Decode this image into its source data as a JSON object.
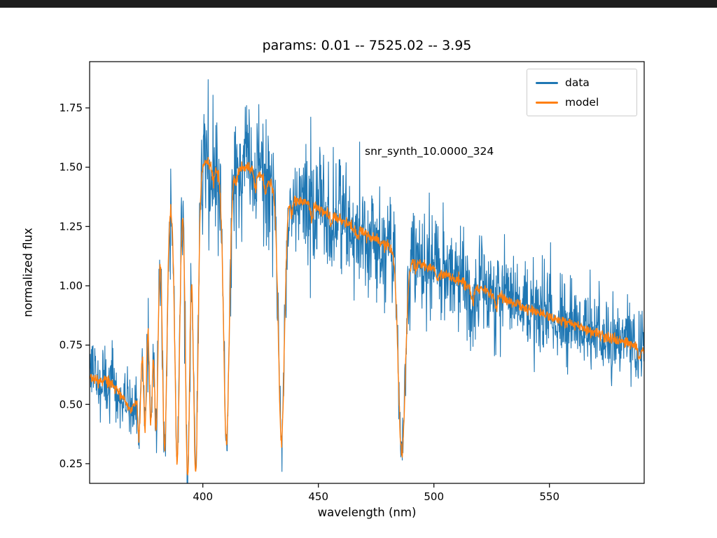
{
  "window": {
    "top_bar_color": "#1e1e1e"
  },
  "figure": {
    "title": "params: 0.01 -- 7525.02 -- 3.95",
    "xlabel": "wavelength (nm)",
    "ylabel": "normalized flux",
    "annotation": "snr_synth_10.0000_324",
    "background": "#ffffff"
  },
  "legend": {
    "entries": [
      {
        "label": "data",
        "color": "#1f77b4"
      },
      {
        "label": "model",
        "color": "#ff7f0e"
      }
    ]
  },
  "chart_data": {
    "type": "line",
    "title": "params: 0.01 -- 7525.02 -- 3.95",
    "xlabel": "wavelength (nm)",
    "ylabel": "normalized flux",
    "xlim": [
      351,
      591
    ],
    "ylim": [
      0.167,
      1.945
    ],
    "xticks": [
      400,
      450,
      500,
      550
    ],
    "yticks": [
      0.25,
      0.5,
      0.75,
      1.0,
      1.25,
      1.5,
      1.75
    ],
    "grid": false,
    "legend_position": "upper right",
    "annotation": {
      "text": "snr_synth_10.0000_324",
      "x": 470,
      "y": 1.57
    },
    "series": [
      {
        "name": "data",
        "color": "#1f77b4",
        "linewidth": 1.1
      },
      {
        "name": "model",
        "color": "#ff7f0e",
        "linewidth": 1.4
      }
    ],
    "model_continuum": {
      "x": [
        351,
        355,
        358,
        361,
        364,
        367,
        369,
        371,
        373,
        375,
        377,
        379,
        381,
        384,
        387,
        390,
        393,
        396,
        399,
        402,
        405,
        408,
        411,
        414,
        417,
        420,
        424,
        428,
        432,
        436,
        440,
        445,
        450,
        455,
        460,
        465,
        470,
        475,
        480,
        485,
        490,
        495,
        500,
        505,
        510,
        515,
        520,
        525,
        530,
        535,
        540,
        545,
        550,
        555,
        560,
        565,
        570,
        575,
        580,
        585,
        588,
        591
      ],
      "y": [
        0.615,
        0.6,
        0.6,
        0.585,
        0.55,
        0.5,
        0.47,
        0.52,
        0.72,
        0.9,
        1.05,
        1.16,
        1.24,
        1.31,
        1.36,
        1.4,
        1.44,
        1.47,
        1.5,
        1.52,
        1.5,
        1.47,
        1.46,
        1.48,
        1.5,
        1.5,
        1.47,
        1.44,
        1.41,
        1.385,
        1.365,
        1.345,
        1.325,
        1.3,
        1.275,
        1.25,
        1.225,
        1.195,
        1.165,
        1.135,
        1.115,
        1.09,
        1.07,
        1.045,
        1.025,
        1.0,
        0.985,
        0.965,
        0.945,
        0.925,
        0.905,
        0.885,
        0.87,
        0.85,
        0.835,
        0.82,
        0.8,
        0.785,
        0.77,
        0.755,
        0.74,
        0.725
      ]
    },
    "absorption_lines": [
      [
        372.5,
        0.3,
        0.6
      ],
      [
        375.0,
        0.5,
        0.6
      ],
      [
        377.5,
        0.65,
        0.7
      ],
      [
        379.8,
        0.8,
        0.8
      ],
      [
        383.5,
        1.0,
        0.9
      ],
      [
        388.9,
        1.12,
        1.0
      ],
      [
        393.4,
        1.26,
        0.9
      ],
      [
        396.9,
        1.27,
        1.0
      ],
      [
        410.2,
        1.12,
        1.2
      ],
      [
        434.0,
        1.05,
        1.3
      ],
      [
        486.1,
        0.84,
        1.5
      ],
      [
        404.6,
        0.06,
        0.5
      ],
      [
        414.4,
        0.05,
        0.5
      ],
      [
        422.7,
        0.07,
        0.5
      ],
      [
        427.2,
        0.05,
        0.5
      ],
      [
        438.4,
        0.06,
        0.5
      ],
      [
        447.1,
        0.05,
        0.5
      ],
      [
        455.4,
        0.04,
        0.5
      ],
      [
        466.8,
        0.04,
        0.5
      ],
      [
        492.2,
        0.04,
        0.5
      ],
      [
        501.6,
        0.04,
        0.5
      ],
      [
        516.7,
        0.06,
        0.6
      ],
      [
        527.0,
        0.05,
        0.5
      ],
      [
        588.9,
        0.05,
        0.5
      ]
    ],
    "noise": {
      "seed": 20,
      "model_sigma": 0.012,
      "data_sigma_base": 0.03,
      "data_sigma_scale": 0.075
    },
    "sampling": {
      "start": 351,
      "end": 591,
      "step": 0.15
    }
  }
}
